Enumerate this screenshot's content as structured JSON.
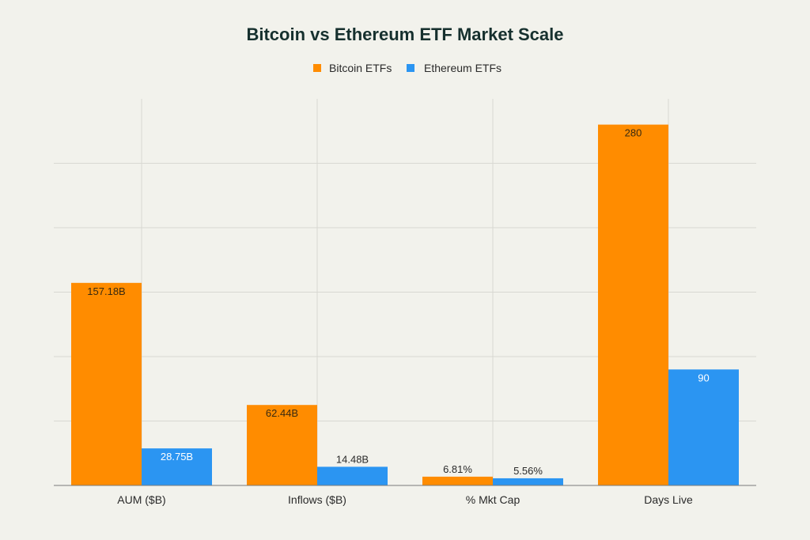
{
  "chart_data": {
    "type": "bar",
    "title": "Bitcoin vs Ethereum ETF Market Scale",
    "categories": [
      "AUM ($B)",
      "Inflows ($B)",
      "% Mkt Cap",
      "Days Live"
    ],
    "series": [
      {
        "name": "Bitcoin ETFs",
        "color": "#ff8c00",
        "values": [
          157.18,
          62.44,
          6.81,
          280
        ],
        "labels": [
          "157.18B",
          "62.44B",
          "6.81%",
          "280"
        ]
      },
      {
        "name": "Ethereum ETFs",
        "color": "#2b95f2",
        "values": [
          28.75,
          14.48,
          5.56,
          90
        ],
        "labels": [
          "28.75B",
          "14.48B",
          "5.56%",
          "90"
        ]
      }
    ],
    "ylim": [
      0,
      300
    ],
    "grid": true,
    "legend": "top-center",
    "xlabel": "",
    "ylabel": ""
  }
}
